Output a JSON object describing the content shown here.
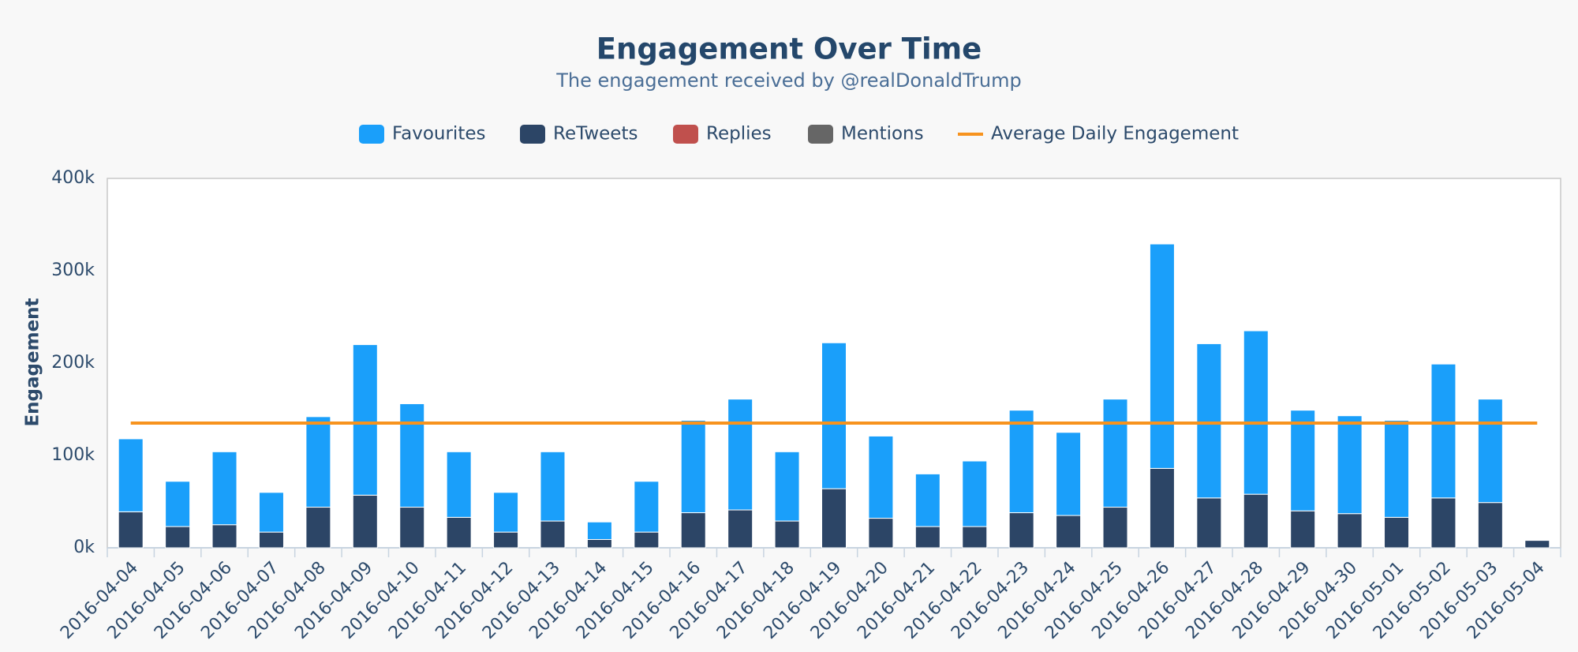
{
  "chart_data": {
    "type": "bar",
    "stacked": true,
    "title": "Engagement Over Time",
    "subtitle": "The engagement received by @realDonaldTrump",
    "y_label": "Engagement",
    "categories": [
      "2016-04-04",
      "2016-04-05",
      "2016-04-06",
      "2016-04-07",
      "2016-04-08",
      "2016-04-09",
      "2016-04-10",
      "2016-04-11",
      "2016-04-12",
      "2016-04-13",
      "2016-04-14",
      "2016-04-15",
      "2016-04-16",
      "2016-04-17",
      "2016-04-18",
      "2016-04-19",
      "2016-04-20",
      "2016-04-21",
      "2016-04-22",
      "2016-04-23",
      "2016-04-24",
      "2016-04-25",
      "2016-04-26",
      "2016-04-27",
      "2016-04-28",
      "2016-04-29",
      "2016-04-30",
      "2016-05-01",
      "2016-05-02",
      "2016-05-03",
      "2016-05-04"
    ],
    "series": [
      {
        "name": "Favourites",
        "color": "#1a9ffa",
        "values": [
          79000,
          49000,
          79000,
          43000,
          98000,
          163000,
          112000,
          71000,
          43000,
          75000,
          19000,
          55000,
          100000,
          120000,
          75000,
          158000,
          89000,
          57000,
          71000,
          111000,
          90000,
          117000,
          243000,
          167000,
          177000,
          109000,
          106000,
          105000,
          145000,
          112000,
          0
        ]
      },
      {
        "name": "ReTweets",
        "color": "#2c4566",
        "values": [
          39000,
          23000,
          25000,
          17000,
          44000,
          57000,
          44000,
          33000,
          17000,
          29000,
          9000,
          17000,
          38000,
          41000,
          29000,
          64000,
          32000,
          23000,
          23000,
          38000,
          35000,
          44000,
          86000,
          54000,
          58000,
          40000,
          37000,
          33000,
          54000,
          49000,
          8000
        ]
      },
      {
        "name": "Replies",
        "color": "#c0504d",
        "values": [
          0,
          0,
          0,
          0,
          0,
          0,
          0,
          0,
          0,
          0,
          0,
          0,
          0,
          0,
          0,
          0,
          0,
          0,
          0,
          0,
          0,
          0,
          0,
          0,
          0,
          0,
          0,
          0,
          0,
          0,
          0
        ]
      },
      {
        "name": "Mentions",
        "color": "#666666",
        "values": [
          0,
          0,
          0,
          0,
          0,
          0,
          0,
          0,
          0,
          0,
          0,
          0,
          0,
          0,
          0,
          0,
          0,
          0,
          0,
          0,
          0,
          0,
          0,
          0,
          0,
          0,
          0,
          0,
          0,
          0,
          0
        ]
      }
    ],
    "average": {
      "name": "Average Daily Engagement",
      "color": "#f7931e",
      "value": 135000
    },
    "ylim": [
      0,
      400000
    ],
    "yticks": [
      {
        "value": 0,
        "label": "0k"
      },
      {
        "value": 100000,
        "label": "100k"
      },
      {
        "value": 200000,
        "label": "200k"
      },
      {
        "value": 300000,
        "label": "300k"
      },
      {
        "value": 400000,
        "label": "400k"
      }
    ],
    "grid": false
  }
}
